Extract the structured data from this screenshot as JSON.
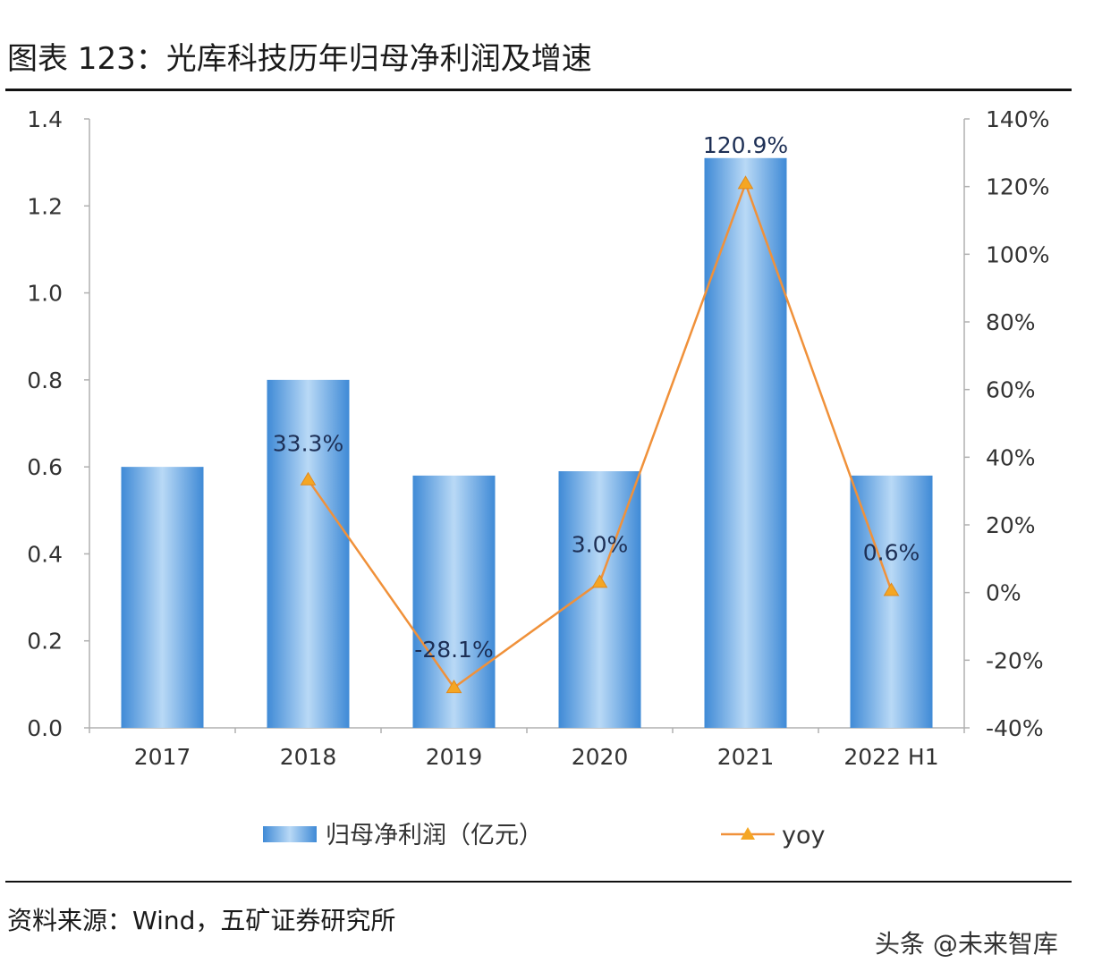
{
  "header": {
    "title": "图表 123：光库科技历年归母净利润及增速"
  },
  "footer": {
    "source": "资料来源：Wind，五矿证券研究所",
    "watermark": "头条 @未来智库"
  },
  "colors": {
    "bar": "#5b9fe0",
    "line": "#f0913a",
    "marker": "#f5a623"
  },
  "chart_data": {
    "type": "bar",
    "categories": [
      "2017",
      "2018",
      "2019",
      "2020",
      "2021",
      "2022 H1"
    ],
    "series": [
      {
        "name": "归母净利润（亿元）",
        "type": "bar",
        "axis": "left",
        "values": [
          0.6,
          0.8,
          0.58,
          0.59,
          1.31,
          0.58
        ]
      },
      {
        "name": "yoy",
        "type": "line",
        "axis": "right",
        "values": [
          null,
          33.3,
          -28.1,
          3.0,
          120.9,
          0.6
        ],
        "labels": [
          "",
          "33.3%",
          "-28.1%",
          "3.0%",
          "120.9%",
          "0.6%"
        ]
      }
    ],
    "y_left": {
      "min": 0.0,
      "max": 1.4,
      "ticks": [
        "0.0",
        "0.2",
        "0.4",
        "0.6",
        "0.8",
        "1.0",
        "1.2",
        "1.4"
      ]
    },
    "y_right": {
      "min": -40,
      "max": 140,
      "ticks": [
        "-40%",
        "-20%",
        "0%",
        "20%",
        "40%",
        "60%",
        "80%",
        "100%",
        "120%",
        "140%"
      ]
    },
    "legend": {
      "position": "bottom"
    },
    "grid": false
  }
}
